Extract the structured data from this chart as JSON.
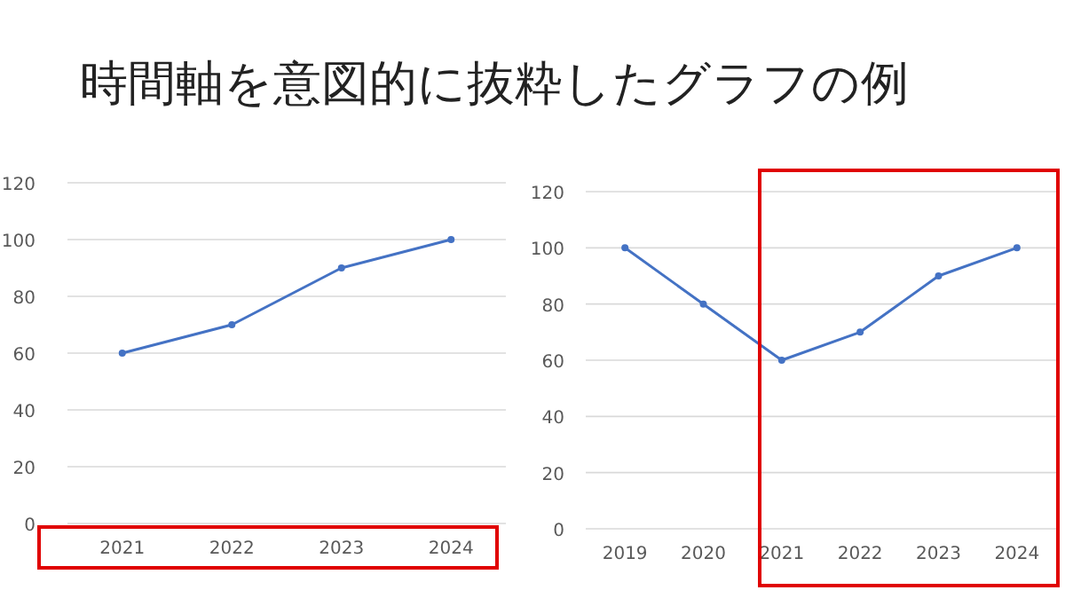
{
  "chart_data": [
    {
      "type": "line",
      "title": "時間軸を意図的に抜粋したグラフの例",
      "categories": [
        "2021",
        "2022",
        "2023",
        "2024"
      ],
      "series": [
        {
          "color": "#4472c4",
          "values": [
            60,
            70,
            90,
            100
          ]
        }
      ],
      "ylim": [
        0,
        120
      ],
      "yticks": [
        0,
        20,
        40,
        60,
        80,
        100,
        120
      ],
      "grid": "y",
      "marker": "circle",
      "line_style": "solid"
    },
    {
      "type": "line",
      "categories": [
        "2019",
        "2020",
        "2021",
        "2022",
        "2023",
        "2024"
      ],
      "series": [
        {
          "color": "#4472c4",
          "values": [
            100,
            80,
            60,
            70,
            90,
            100
          ]
        }
      ],
      "ylim": [
        0,
        120
      ],
      "yticks": [
        0,
        20,
        40,
        60,
        80,
        100,
        120
      ],
      "grid": "y",
      "marker": "circle",
      "line_style": "solid"
    }
  ]
}
